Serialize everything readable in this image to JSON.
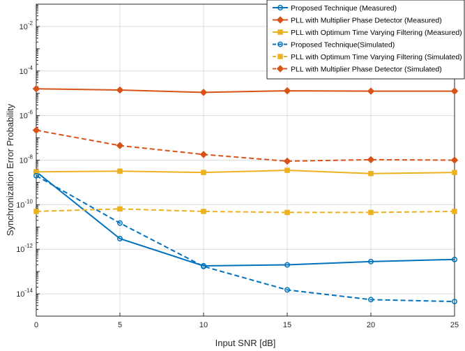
{
  "chart_data": {
    "type": "line",
    "xlabel": "Input SNR [dB]",
    "ylabel": "Synchronization Error Probability",
    "y_scale": "log",
    "xlim": [
      0,
      25
    ],
    "ylim": [
      1e-15,
      0.1
    ],
    "grid": true,
    "legend_position": "top-right",
    "x": [
      0,
      5,
      10,
      15,
      20,
      25
    ],
    "x_ticks": [
      0,
      5,
      10,
      15,
      20,
      25
    ],
    "y_ticks": [
      1e-14,
      1e-12,
      1e-10,
      1e-08,
      1e-06,
      0.0001,
      0.01
    ],
    "y_tick_exponents": [
      "-14",
      "-12",
      "-10",
      "-8",
      "-6",
      "-4",
      "-2"
    ],
    "series": [
      {
        "name": "Proposed Technique (Measured)",
        "color": "#0072BD",
        "line_style": "solid",
        "marker": "circle",
        "values": [
          3e-09,
          3e-12,
          1.8e-13,
          2e-13,
          2.8e-13,
          3.5e-13
        ]
      },
      {
        "name": "PLL with Multiplier Phase Detector (Measured)",
        "color": "#D95319",
        "line_style": "solid",
        "marker": "diamond",
        "values": [
          1.6e-05,
          1.4e-05,
          1.1e-05,
          1.3e-05,
          1.25e-05,
          1.25e-05
        ]
      },
      {
        "name": "PLL with Optimum Time Varying Filtering (Measured)",
        "color": "#EDB120",
        "line_style": "solid",
        "marker": "square",
        "values": [
          3e-09,
          3.2e-09,
          2.8e-09,
          3.5e-09,
          2.5e-09,
          2.8e-09
        ]
      },
      {
        "name": "Proposed Technique(Simulated)",
        "color": "#0072BD",
        "line_style": "dashed",
        "marker": "circle",
        "values": [
          2e-09,
          1.5e-11,
          1.7e-13,
          1.5e-14,
          5.5e-15,
          4.5e-15
        ]
      },
      {
        "name": "PLL with Optimum Time Varying Filtering (Simulated)",
        "color": "#EDB120",
        "line_style": "dashed",
        "marker": "square",
        "values": [
          5e-11,
          6.5e-11,
          5e-11,
          4.5e-11,
          4.5e-11,
          5e-11
        ]
      },
      {
        "name": "PLL with Multiplier Phase Detector (Simulated)",
        "color": "#D95319",
        "line_style": "dashed",
        "marker": "diamond",
        "values": [
          2.2e-07,
          4.5e-08,
          1.8e-08,
          9e-09,
          1.05e-08,
          1e-08
        ]
      }
    ]
  }
}
